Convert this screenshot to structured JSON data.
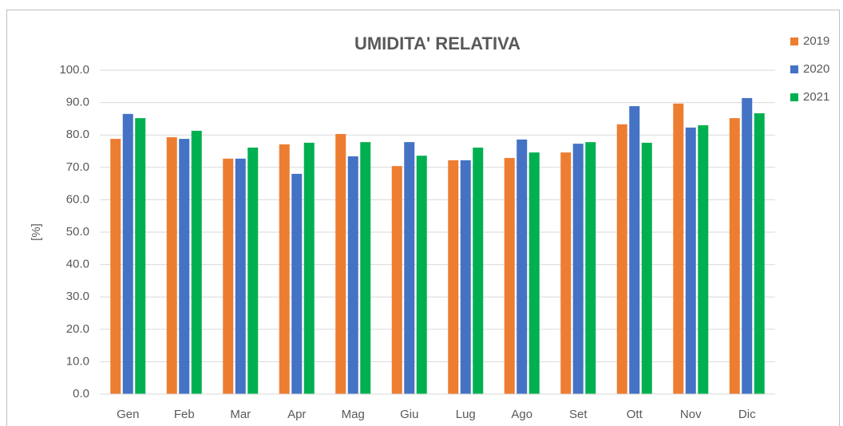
{
  "chart_data": {
    "type": "bar",
    "title": "UMIDITA' RELATIVA",
    "ylabel": "[%]",
    "categories": [
      "Gen",
      "Feb",
      "Mar",
      "Apr",
      "Mag",
      "Giu",
      "Lug",
      "Ago",
      "Set",
      "Ott",
      "Nov",
      "Dic"
    ],
    "series": [
      {
        "name": "2019",
        "color": "#ed7d31",
        "values": [
          78.8,
          79.3,
          72.7,
          77.1,
          80.3,
          70.4,
          72.2,
          72.9,
          74.6,
          83.3,
          89.7,
          85.2
        ]
      },
      {
        "name": "2020",
        "color": "#4472c4",
        "values": [
          86.5,
          78.8,
          72.7,
          68.0,
          73.4,
          77.8,
          72.2,
          78.6,
          77.3,
          88.9,
          82.3,
          91.4
        ]
      },
      {
        "name": "2021",
        "color": "#00b050",
        "values": [
          85.2,
          81.3,
          76.1,
          77.6,
          77.8,
          73.6,
          76.1,
          74.6,
          77.8,
          77.6,
          83.0,
          86.7
        ]
      }
    ],
    "ylim": [
      0,
      100
    ],
    "yticks": [
      {
        "value": 0,
        "label": "0.0"
      },
      {
        "value": 10,
        "label": "10.0"
      },
      {
        "value": 20,
        "label": "20.0"
      },
      {
        "value": 30,
        "label": "30.0"
      },
      {
        "value": 40,
        "label": "40.0"
      },
      {
        "value": 50,
        "label": "50.0"
      },
      {
        "value": 60,
        "label": "60.0"
      },
      {
        "value": 70,
        "label": "70.0"
      },
      {
        "value": 80,
        "label": "80.0"
      },
      {
        "value": 90,
        "label": "90.0"
      },
      {
        "value": 100,
        "label": "100.0"
      }
    ],
    "grid": true,
    "legend": "right"
  }
}
